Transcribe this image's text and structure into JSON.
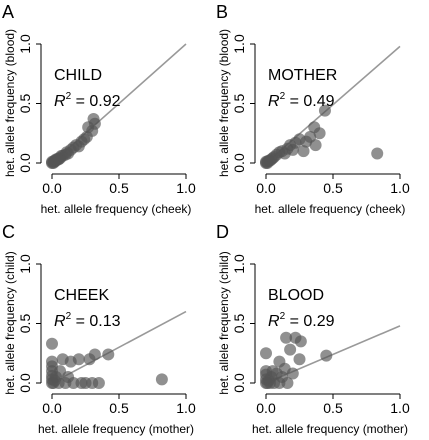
{
  "chart_data": [
    {
      "type": "scatter",
      "panel_letter": "A",
      "label_name": "CHILD",
      "r2_prefix": "R",
      "r2_sup": "2",
      "r2_text": " = 0.92",
      "xlabel": "het. allele frequency (cheek)",
      "ylabel": "het. allele frequency (blood)",
      "xlim": [
        0,
        1.0
      ],
      "ylim": [
        0,
        1.0
      ],
      "x_ticks": [
        "0.0",
        "0.5",
        "1.0"
      ],
      "y_ticks": [
        "0.0",
        "0.5",
        "1.0"
      ],
      "fit_line": {
        "slope": 1.0,
        "intercept": 0.0
      },
      "points": [
        [
          0.0,
          0.0
        ],
        [
          0.0,
          0.01
        ],
        [
          0.01,
          0.0
        ],
        [
          0.01,
          0.01
        ],
        [
          0.02,
          0.01
        ],
        [
          0.02,
          0.02
        ],
        [
          0.03,
          0.02
        ],
        [
          0.03,
          0.03
        ],
        [
          0.04,
          0.03
        ],
        [
          0.05,
          0.03
        ],
        [
          0.05,
          0.04
        ],
        [
          0.06,
          0.04
        ],
        [
          0.07,
          0.06
        ],
        [
          0.08,
          0.06
        ],
        [
          0.1,
          0.07
        ],
        [
          0.11,
          0.09
        ],
        [
          0.12,
          0.08
        ],
        [
          0.14,
          0.11
        ],
        [
          0.16,
          0.13
        ],
        [
          0.18,
          0.15
        ],
        [
          0.2,
          0.14
        ],
        [
          0.22,
          0.18
        ],
        [
          0.24,
          0.2
        ],
        [
          0.26,
          0.22
        ],
        [
          0.27,
          0.3
        ],
        [
          0.3,
          0.27
        ],
        [
          0.31,
          0.37
        ],
        [
          0.32,
          0.33
        ]
      ]
    },
    {
      "type": "scatter",
      "panel_letter": "B",
      "label_name": "MOTHER",
      "r2_prefix": "R",
      "r2_sup": "2",
      "r2_text": " = 0.49",
      "xlabel": "het. allele frequency (cheek)",
      "ylabel": "het. allele frequency (blood)",
      "xlim": [
        0,
        1.0
      ],
      "ylim": [
        0,
        1.0
      ],
      "x_ticks": [
        "0.0",
        "0.5",
        "1.0"
      ],
      "y_ticks": [
        "0.0",
        "0.5",
        "1.0"
      ],
      "fit_line": {
        "slope": 0.98,
        "intercept": 0.0
      },
      "points": [
        [
          0.0,
          0.0
        ],
        [
          0.0,
          0.01
        ],
        [
          0.01,
          0.0
        ],
        [
          0.01,
          0.01
        ],
        [
          0.02,
          0.02
        ],
        [
          0.03,
          0.02
        ],
        [
          0.04,
          0.03
        ],
        [
          0.05,
          0.04
        ],
        [
          0.06,
          0.05
        ],
        [
          0.08,
          0.07
        ],
        [
          0.1,
          0.09
        ],
        [
          0.12,
          0.1
        ],
        [
          0.14,
          0.08
        ],
        [
          0.16,
          0.12
        ],
        [
          0.18,
          0.15
        ],
        [
          0.2,
          0.11
        ],
        [
          0.22,
          0.17
        ],
        [
          0.25,
          0.2
        ],
        [
          0.28,
          0.1
        ],
        [
          0.3,
          0.18
        ],
        [
          0.33,
          0.22
        ],
        [
          0.36,
          0.3
        ],
        [
          0.37,
          0.15
        ],
        [
          0.4,
          0.25
        ],
        [
          0.44,
          0.44
        ],
        [
          0.83,
          0.08
        ]
      ]
    },
    {
      "type": "scatter",
      "panel_letter": "C",
      "label_name": "CHEEK",
      "r2_prefix": "R",
      "r2_sup": "2",
      "r2_text": " = 0.13",
      "xlabel": "het. allele frequency (mother)",
      "ylabel": "het. allele frequency (child)",
      "xlim": [
        0,
        1.0
      ],
      "ylim": [
        0,
        1.0
      ],
      "x_ticks": [
        "0.0",
        "0.5",
        "1.0"
      ],
      "y_ticks": [
        "0.0",
        "0.5",
        "1.0"
      ],
      "fit_line": {
        "slope": 0.6,
        "intercept": 0.0
      },
      "points": [
        [
          0.0,
          0.0
        ],
        [
          0.0,
          0.03
        ],
        [
          0.0,
          0.06
        ],
        [
          0.0,
          0.1
        ],
        [
          0.0,
          0.14
        ],
        [
          0.0,
          0.18
        ],
        [
          0.0,
          0.33
        ],
        [
          0.01,
          0.0
        ],
        [
          0.02,
          0.02
        ],
        [
          0.03,
          0.05
        ],
        [
          0.05,
          0.0
        ],
        [
          0.06,
          0.1
        ],
        [
          0.08,
          0.2
        ],
        [
          0.1,
          0.0
        ],
        [
          0.12,
          0.05
        ],
        [
          0.14,
          0.18
        ],
        [
          0.16,
          0.0
        ],
        [
          0.2,
          0.2
        ],
        [
          0.22,
          0.0
        ],
        [
          0.25,
          0.0
        ],
        [
          0.28,
          0.2
        ],
        [
          0.3,
          0.0
        ],
        [
          0.32,
          0.24
        ],
        [
          0.35,
          0.0
        ],
        [
          0.42,
          0.24
        ],
        [
          0.82,
          0.03
        ]
      ]
    },
    {
      "type": "scatter",
      "panel_letter": "D",
      "label_name": "BLOOD",
      "r2_prefix": "R",
      "r2_sup": "2",
      "r2_text": " = 0.29",
      "xlabel": "het. allele frequency (mother)",
      "ylabel": "het. allele frequency (child)",
      "xlim": [
        0,
        1.0
      ],
      "ylim": [
        0,
        1.0
      ],
      "x_ticks": [
        "0.0",
        "0.5",
        "1.0"
      ],
      "y_ticks": [
        "0.0",
        "0.5",
        "1.0"
      ],
      "fit_line": {
        "slope": 0.48,
        "intercept": 0.0
      },
      "points": [
        [
          0.0,
          0.0
        ],
        [
          0.0,
          0.03
        ],
        [
          0.0,
          0.07
        ],
        [
          0.0,
          0.1
        ],
        [
          0.0,
          0.25
        ],
        [
          0.01,
          0.0
        ],
        [
          0.02,
          0.02
        ],
        [
          0.03,
          0.0
        ],
        [
          0.04,
          0.05
        ],
        [
          0.05,
          0.1
        ],
        [
          0.06,
          0.0
        ],
        [
          0.08,
          0.08
        ],
        [
          0.1,
          0.0
        ],
        [
          0.1,
          0.18
        ],
        [
          0.12,
          0.05
        ],
        [
          0.14,
          0.12
        ],
        [
          0.15,
          0.38
        ],
        [
          0.16,
          0.0
        ],
        [
          0.18,
          0.28
        ],
        [
          0.2,
          0.08
        ],
        [
          0.22,
          0.38
        ],
        [
          0.25,
          0.2
        ],
        [
          0.26,
          0.35
        ],
        [
          0.45,
          0.23
        ]
      ]
    }
  ]
}
